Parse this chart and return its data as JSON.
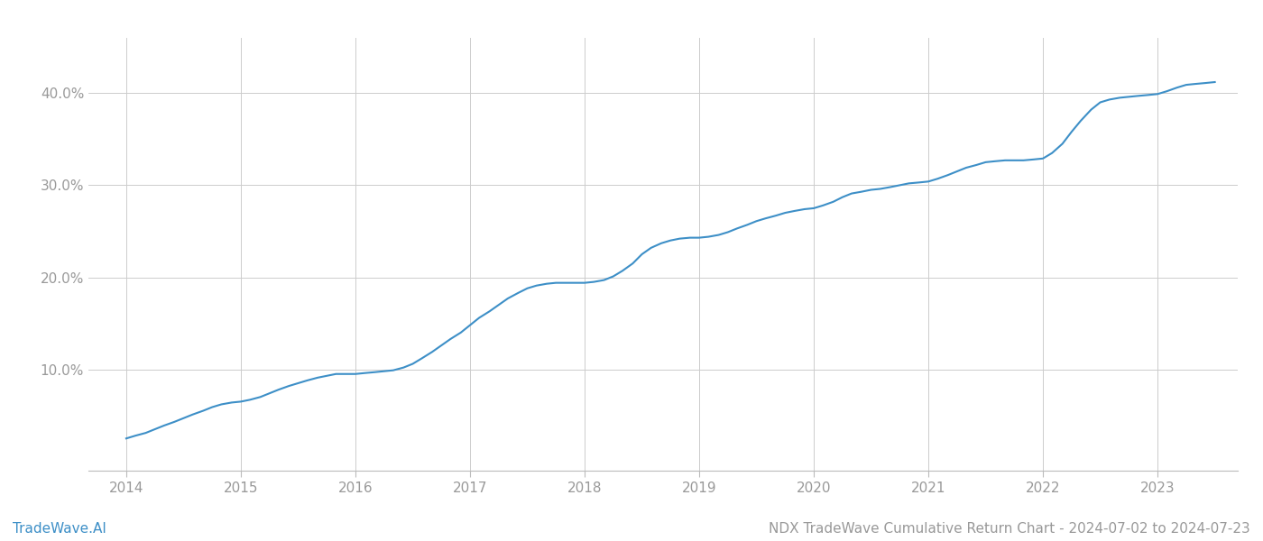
{
  "title": "NDX TradeWave Cumulative Return Chart - 2024-07-02 to 2024-07-23",
  "watermark": "TradeWave.AI",
  "line_color": "#3d8fc7",
  "background_color": "#ffffff",
  "grid_color": "#cccccc",
  "x_years": [
    2014,
    2015,
    2016,
    2017,
    2018,
    2019,
    2020,
    2021,
    2022,
    2023
  ],
  "x_values": [
    2014.0,
    2014.08,
    2014.17,
    2014.25,
    2014.33,
    2014.42,
    2014.5,
    2014.58,
    2014.67,
    2014.75,
    2014.83,
    2014.92,
    2015.0,
    2015.08,
    2015.17,
    2015.25,
    2015.33,
    2015.42,
    2015.5,
    2015.58,
    2015.67,
    2015.75,
    2015.83,
    2015.92,
    2016.0,
    2016.08,
    2016.17,
    2016.25,
    2016.33,
    2016.42,
    2016.5,
    2016.58,
    2016.67,
    2016.75,
    2016.83,
    2016.92,
    2017.0,
    2017.08,
    2017.17,
    2017.25,
    2017.33,
    2017.42,
    2017.5,
    2017.58,
    2017.67,
    2017.75,
    2017.83,
    2017.92,
    2018.0,
    2018.08,
    2018.17,
    2018.25,
    2018.33,
    2018.42,
    2018.5,
    2018.58,
    2018.67,
    2018.75,
    2018.83,
    2018.92,
    2019.0,
    2019.08,
    2019.17,
    2019.25,
    2019.33,
    2019.42,
    2019.5,
    2019.58,
    2019.67,
    2019.75,
    2019.83,
    2019.92,
    2020.0,
    2020.08,
    2020.17,
    2020.25,
    2020.33,
    2020.42,
    2020.5,
    2020.58,
    2020.67,
    2020.75,
    2020.83,
    2020.92,
    2021.0,
    2021.08,
    2021.17,
    2021.25,
    2021.33,
    2021.42,
    2021.5,
    2021.58,
    2021.67,
    2021.75,
    2021.83,
    2021.92,
    2022.0,
    2022.08,
    2022.17,
    2022.25,
    2022.33,
    2022.42,
    2022.5,
    2022.58,
    2022.67,
    2022.75,
    2022.83,
    2022.92,
    2023.0,
    2023.08,
    2023.17,
    2023.25,
    2023.33,
    2023.42,
    2023.5
  ],
  "y_values": [
    2.5,
    2.8,
    3.1,
    3.5,
    3.9,
    4.3,
    4.7,
    5.1,
    5.5,
    5.9,
    6.2,
    6.4,
    6.5,
    6.7,
    7.0,
    7.4,
    7.8,
    8.2,
    8.5,
    8.8,
    9.1,
    9.3,
    9.5,
    9.5,
    9.5,
    9.6,
    9.7,
    9.8,
    9.9,
    10.2,
    10.6,
    11.2,
    11.9,
    12.6,
    13.3,
    14.0,
    14.8,
    15.6,
    16.3,
    17.0,
    17.7,
    18.3,
    18.8,
    19.1,
    19.3,
    19.4,
    19.4,
    19.4,
    19.4,
    19.5,
    19.7,
    20.1,
    20.7,
    21.5,
    22.5,
    23.2,
    23.7,
    24.0,
    24.2,
    24.3,
    24.3,
    24.4,
    24.6,
    24.9,
    25.3,
    25.7,
    26.1,
    26.4,
    26.7,
    27.0,
    27.2,
    27.4,
    27.5,
    27.8,
    28.2,
    28.7,
    29.1,
    29.3,
    29.5,
    29.6,
    29.8,
    30.0,
    30.2,
    30.3,
    30.4,
    30.7,
    31.1,
    31.5,
    31.9,
    32.2,
    32.5,
    32.6,
    32.7,
    32.7,
    32.7,
    32.8,
    32.9,
    33.5,
    34.5,
    35.8,
    37.0,
    38.2,
    39.0,
    39.3,
    39.5,
    39.6,
    39.7,
    39.8,
    39.9,
    40.2,
    40.6,
    40.9,
    41.0,
    41.1,
    41.2
  ],
  "yticks": [
    10.0,
    20.0,
    30.0,
    40.0
  ],
  "ylim": [
    -1,
    46
  ],
  "xlim": [
    2013.67,
    2023.7
  ],
  "title_fontsize": 11,
  "watermark_fontsize": 11,
  "tick_fontsize": 11,
  "tick_color": "#999999",
  "line_width": 1.5
}
